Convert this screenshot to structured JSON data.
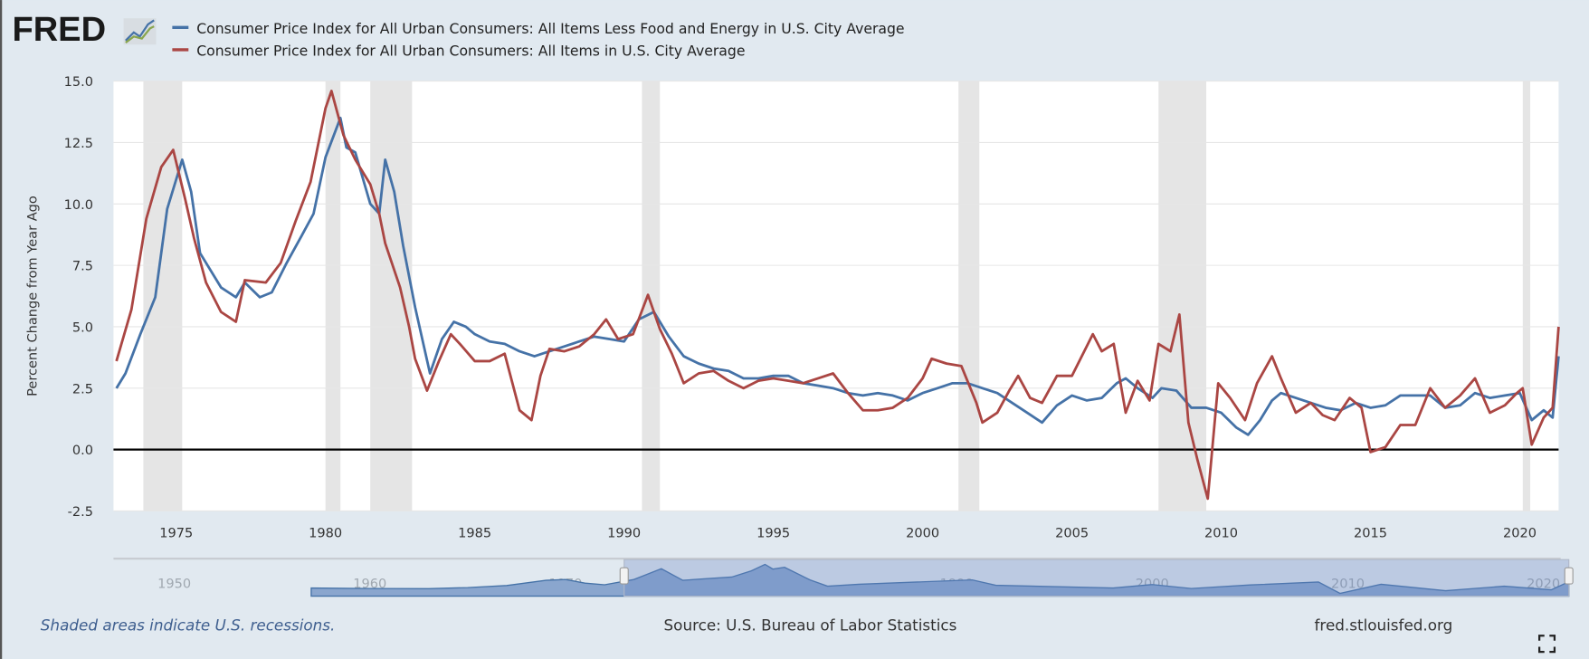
{
  "logo": "FRED",
  "colors": {
    "core": "#4572a7",
    "all_items": "#aa4643",
    "recession": "#e5e5e5",
    "background": "#e1e9f0"
  },
  "footer": {
    "recession_note": "Shaded areas indicate U.S. recessions.",
    "source": "Source: U.S. Bureau of Labor Statistics",
    "site": "fred.stlouisfed.org",
    "fullscreen_icon": "expand-icon"
  },
  "navigator": {
    "labels": [
      "1950",
      "1960",
      "1970",
      "1980",
      "1990",
      "2000",
      "2010",
      "2020"
    ],
    "selected_range": [
      1973,
      2021.3
    ]
  },
  "chart_data": {
    "type": "line",
    "ylabel": "Percent Change from Year Ago",
    "xlabel": "",
    "xlim": [
      1972.9,
      2021.3
    ],
    "ylim": [
      -2.5,
      15.0
    ],
    "yticks": [
      "-2.5",
      "0.0",
      "2.5",
      "5.0",
      "7.5",
      "10.0",
      "12.5",
      "15.0"
    ],
    "xticks": [
      "1975",
      "1980",
      "1985",
      "1990",
      "1995",
      "2000",
      "2005",
      "2010",
      "2015",
      "2020"
    ],
    "legend_position": "top",
    "recessions": [
      [
        1973.9,
        1975.2
      ],
      [
        1980.0,
        1980.5
      ],
      [
        1981.5,
        1982.9
      ],
      [
        1990.6,
        1991.2
      ],
      [
        2001.2,
        2001.9
      ],
      [
        2007.9,
        2009.5
      ],
      [
        2020.1,
        2020.35
      ]
    ],
    "series": [
      {
        "name": "Consumer Price Index for All Urban Consumers: All Items Less Food and Energy in U.S. City Average",
        "x": [
          1973.0,
          1973.3,
          1973.8,
          1974.3,
          1974.7,
          1975.0,
          1975.2,
          1975.5,
          1975.8,
          1976.5,
          1977.0,
          1977.3,
          1977.8,
          1978.2,
          1978.7,
          1979.2,
          1979.6,
          1980.0,
          1980.5,
          1980.7,
          1981.0,
          1981.5,
          1981.8,
          1982.0,
          1982.3,
          1982.6,
          1983.0,
          1983.5,
          1983.9,
          1984.3,
          1984.7,
          1985.0,
          1985.5,
          1986.0,
          1986.5,
          1987.0,
          1987.5,
          1988.0,
          1988.5,
          1989.0,
          1989.5,
          1990.0,
          1990.5,
          1991.0,
          1991.5,
          1992.0,
          1992.5,
          1993.0,
          1993.5,
          1994.0,
          1994.5,
          1995.0,
          1995.5,
          1996.0,
          1996.5,
          1997.0,
          1997.5,
          1998.0,
          1998.5,
          1999.0,
          1999.5,
          2000.0,
          2000.5,
          2001.0,
          2001.5,
          2002.0,
          2002.5,
          2003.0,
          2003.5,
          2004.0,
          2004.5,
          2005.0,
          2005.5,
          2006.0,
          2006.5,
          2006.8,
          2007.2,
          2007.7,
          2008.0,
          2008.5,
          2009.0,
          2009.5,
          2010.0,
          2010.5,
          2010.9,
          2011.3,
          2011.7,
          2012.0,
          2012.5,
          2013.0,
          2013.5,
          2014.0,
          2014.5,
          2015.0,
          2015.5,
          2016.0,
          2016.5,
          2017.0,
          2017.5,
          2018.0,
          2018.5,
          2019.0,
          2019.5,
          2020.0,
          2020.4,
          2020.8,
          2021.1,
          2021.3
        ],
        "values": [
          2.5,
          3.1,
          4.7,
          6.2,
          9.8,
          11.0,
          11.8,
          10.5,
          8.0,
          6.6,
          6.2,
          6.8,
          6.2,
          6.4,
          7.6,
          8.7,
          9.6,
          11.9,
          13.5,
          12.3,
          12.1,
          10.0,
          9.6,
          11.8,
          10.5,
          8.3,
          5.8,
          3.1,
          4.5,
          5.2,
          5.0,
          4.7,
          4.4,
          4.3,
          4.0,
          3.8,
          4.0,
          4.2,
          4.4,
          4.6,
          4.5,
          4.4,
          5.3,
          5.6,
          4.6,
          3.8,
          3.5,
          3.3,
          3.2,
          2.9,
          2.9,
          3.0,
          3.0,
          2.7,
          2.6,
          2.5,
          2.3,
          2.2,
          2.3,
          2.2,
          2.0,
          2.3,
          2.5,
          2.7,
          2.7,
          2.5,
          2.3,
          1.9,
          1.5,
          1.1,
          1.8,
          2.2,
          2.0,
          2.1,
          2.7,
          2.9,
          2.5,
          2.1,
          2.5,
          2.4,
          1.7,
          1.7,
          1.5,
          0.9,
          0.6,
          1.2,
          2.0,
          2.3,
          2.1,
          1.9,
          1.7,
          1.6,
          1.9,
          1.7,
          1.8,
          2.2,
          2.2,
          2.2,
          1.7,
          1.8,
          2.3,
          2.1,
          2.2,
          2.3,
          1.2,
          1.6,
          1.3,
          3.8
        ]
      },
      {
        "name": "Consumer Price Index for All Urban Consumers: All Items in U.S. City Average",
        "x": [
          1973.0,
          1973.5,
          1974.0,
          1974.5,
          1974.9,
          1975.3,
          1975.6,
          1976.0,
          1976.5,
          1977.0,
          1977.3,
          1978.0,
          1978.5,
          1979.0,
          1979.5,
          1980.0,
          1980.2,
          1980.6,
          1981.0,
          1981.5,
          1981.8,
          1982.0,
          1982.5,
          1982.8,
          1983.0,
          1983.4,
          1983.8,
          1984.2,
          1984.5,
          1985.0,
          1985.5,
          1986.0,
          1986.5,
          1986.9,
          1987.2,
          1987.5,
          1988.0,
          1988.5,
          1989.0,
          1989.4,
          1989.8,
          1990.3,
          1990.8,
          1991.2,
          1991.6,
          1992.0,
          1992.5,
          1993.0,
          1993.5,
          1994.0,
          1994.5,
          1995.0,
          1995.5,
          1996.0,
          1996.5,
          1997.0,
          1997.5,
          1998.0,
          1998.5,
          1999.0,
          1999.5,
          2000.0,
          2000.3,
          2000.8,
          2001.3,
          2001.8,
          2002.0,
          2002.5,
          2002.9,
          2003.2,
          2003.6,
          2004.0,
          2004.5,
          2005.0,
          2005.7,
          2006.0,
          2006.4,
          2006.8,
          2007.2,
          2007.6,
          2007.9,
          2008.3,
          2008.6,
          2008.9,
          2009.2,
          2009.55,
          2009.9,
          2010.3,
          2010.8,
          2011.2,
          2011.7,
          2012.0,
          2012.5,
          2013.0,
          2013.4,
          2013.8,
          2014.3,
          2014.7,
          2015.0,
          2015.5,
          2016.0,
          2016.5,
          2017.0,
          2017.5,
          2018.0,
          2018.5,
          2019.0,
          2019.5,
          2019.9,
          2020.1,
          2020.4,
          2020.8,
          2021.1,
          2021.3
        ],
        "values": [
          3.6,
          5.7,
          9.4,
          11.5,
          12.2,
          10.2,
          8.6,
          6.8,
          5.6,
          5.2,
          6.9,
          6.8,
          7.6,
          9.3,
          10.9,
          13.9,
          14.6,
          12.8,
          11.8,
          10.8,
          9.6,
          8.4,
          6.6,
          5.0,
          3.7,
          2.4,
          3.6,
          4.7,
          4.3,
          3.6,
          3.6,
          3.9,
          1.6,
          1.2,
          3.0,
          4.1,
          4.0,
          4.2,
          4.7,
          5.3,
          4.5,
          4.7,
          6.3,
          4.9,
          3.9,
          2.7,
          3.1,
          3.2,
          2.8,
          2.5,
          2.8,
          2.9,
          2.8,
          2.7,
          2.9,
          3.1,
          2.3,
          1.6,
          1.6,
          1.7,
          2.1,
          2.9,
          3.7,
          3.5,
          3.4,
          1.9,
          1.1,
          1.5,
          2.4,
          3.0,
          2.1,
          1.9,
          3.0,
          3.0,
          4.7,
          4.0,
          4.3,
          1.5,
          2.8,
          2.0,
          4.3,
          4.0,
          5.5,
          1.1,
          -0.4,
          -2.0,
          2.7,
          2.1,
          1.2,
          2.7,
          3.8,
          2.9,
          1.5,
          1.9,
          1.4,
          1.2,
          2.1,
          1.7,
          -0.1,
          0.1,
          1.0,
          1.0,
          2.5,
          1.7,
          2.2,
          2.9,
          1.5,
          1.8,
          2.3,
          2.5,
          0.2,
          1.3,
          1.7,
          5.0
        ]
      }
    ]
  }
}
